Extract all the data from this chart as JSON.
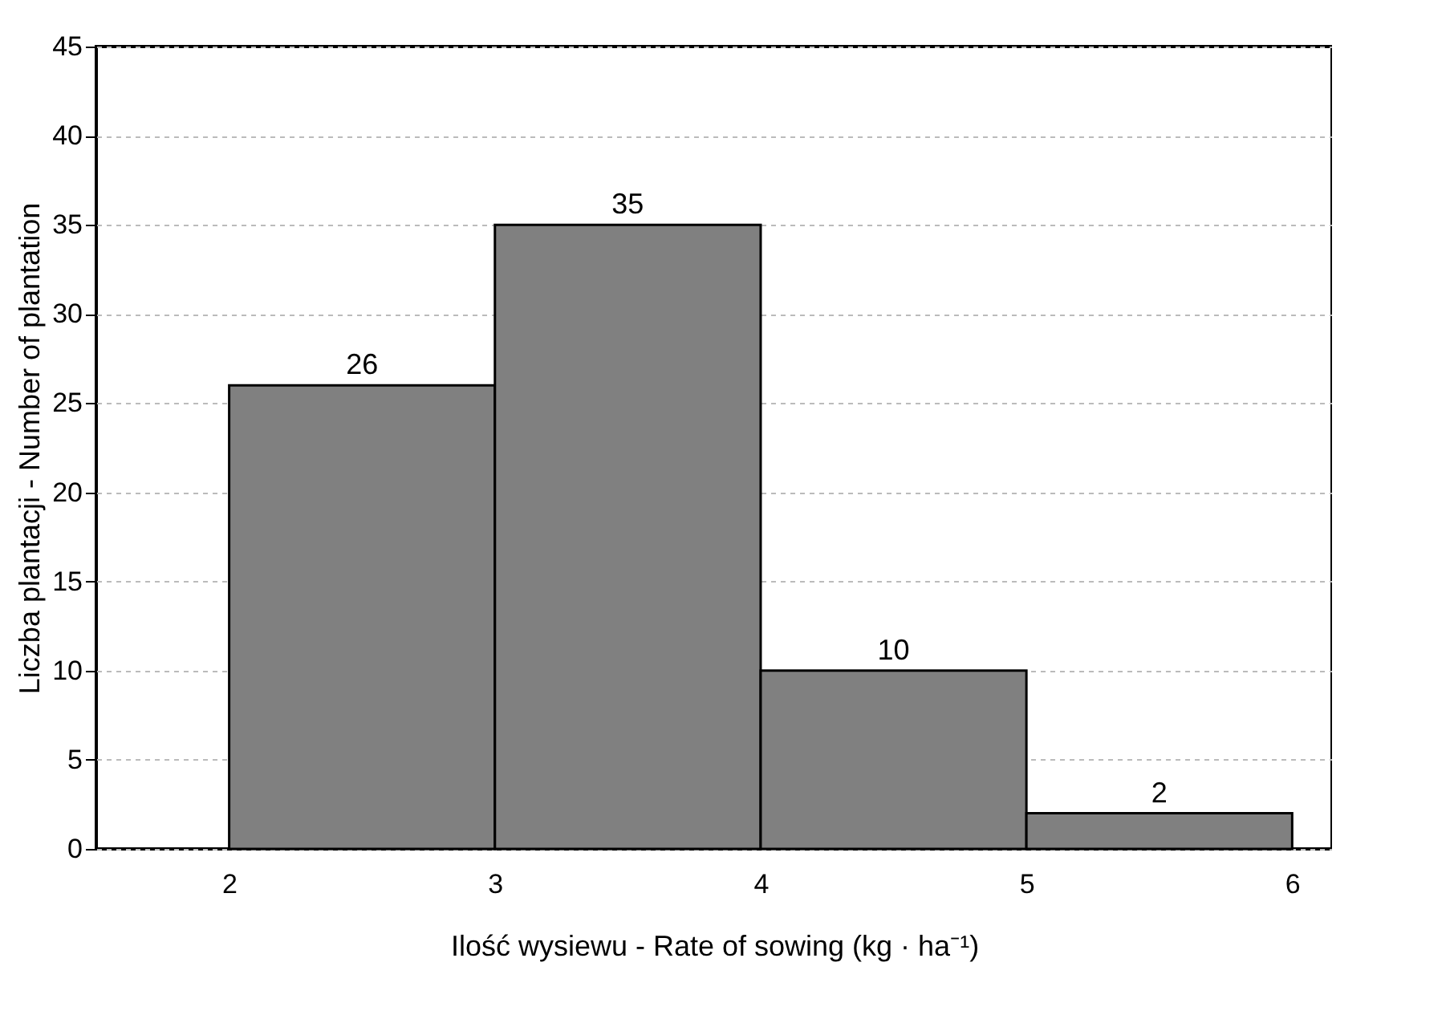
{
  "chart_data": {
    "type": "histogram",
    "bins": [
      2,
      3,
      4,
      5,
      6
    ],
    "values": [
      26,
      35,
      10,
      2
    ],
    "color": "#808080",
    "xlim": [
      1.5,
      6.15
    ],
    "xticks": [
      2,
      3,
      4,
      5,
      6
    ],
    "ylim": [
      0,
      45
    ],
    "yticks": [
      0,
      5,
      10,
      15,
      20,
      25,
      30,
      35,
      40,
      45
    ],
    "xlabel": "Ilość wysiewu - Rate of sowing (kg · ha⁻¹)",
    "ylabel": "Liczba plantacji - Number of plantation",
    "grid": "y",
    "data_labels": true
  }
}
